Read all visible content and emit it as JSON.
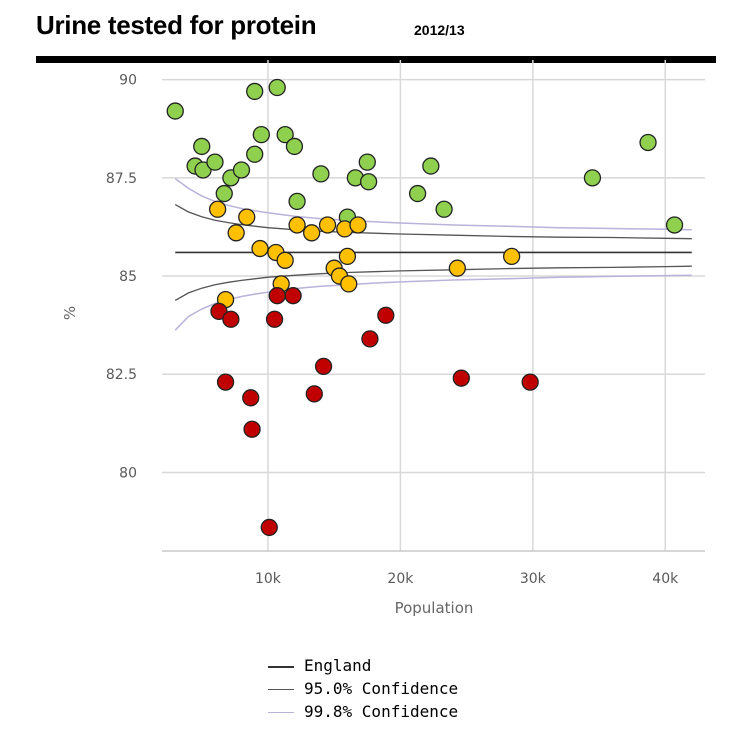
{
  "header": {
    "title": "Urine tested for protein",
    "subtitle": "2012/13"
  },
  "chart_data": {
    "type": "scatter",
    "title": "Urine tested for protein",
    "subtitle": "2012/13",
    "xlabel": "Population",
    "ylabel": "%",
    "xlim": [
      2000,
      43000
    ],
    "ylim": [
      78.0,
      90.5
    ],
    "x_ticks": [
      10000,
      20000,
      30000,
      40000
    ],
    "x_tick_labels": [
      "10k",
      "20k",
      "30k",
      "40k"
    ],
    "y_ticks": [
      80,
      82.5,
      85,
      87.5,
      90
    ],
    "y_tick_labels": [
      "80",
      "82.5",
      "85",
      "87.5",
      "90"
    ],
    "grid": true,
    "colors": {
      "green": "#8fd14f",
      "amber": "#ffc000",
      "red": "#c00000",
      "england": "#333333",
      "ci95": "#555555",
      "ci998": "#b9b2da"
    },
    "england_value": 85.6,
    "confidence_x": [
      3000,
      4000,
      5000,
      6000,
      7000,
      8000,
      9000,
      10000,
      12000,
      14000,
      16000,
      18000,
      20000,
      24000,
      28000,
      32000,
      36000,
      40000,
      42000
    ],
    "ci95_upper": [
      86.82,
      86.63,
      86.51,
      86.42,
      86.36,
      86.31,
      86.27,
      86.23,
      86.18,
      86.14,
      86.11,
      86.09,
      86.07,
      86.04,
      86.01,
      85.99,
      85.98,
      85.96,
      85.95
    ],
    "ci95_lower": [
      84.38,
      84.57,
      84.69,
      84.78,
      84.84,
      84.89,
      84.93,
      84.97,
      85.02,
      85.06,
      85.09,
      85.11,
      85.13,
      85.16,
      85.19,
      85.21,
      85.22,
      85.24,
      85.25
    ],
    "ci998_upper": [
      87.48,
      87.23,
      87.04,
      86.9,
      86.8,
      86.72,
      86.66,
      86.61,
      86.52,
      86.46,
      86.42,
      86.38,
      86.35,
      86.3,
      86.27,
      86.23,
      86.21,
      86.19,
      86.18
    ],
    "ci998_lower": [
      83.62,
      83.97,
      84.16,
      84.3,
      84.4,
      84.48,
      84.54,
      84.59,
      84.68,
      84.74,
      84.78,
      84.82,
      84.85,
      84.9,
      84.93,
      84.97,
      84.99,
      85.01,
      85.02
    ],
    "series": [
      {
        "category": "green",
        "points": [
          [
            3000,
            89.2
          ],
          [
            4500,
            87.8
          ],
          [
            5000,
            88.3
          ],
          [
            5100,
            87.7
          ],
          [
            6000,
            87.9
          ],
          [
            6700,
            87.1
          ],
          [
            7200,
            87.5
          ],
          [
            8000,
            87.7
          ],
          [
            9000,
            88.1
          ],
          [
            9000,
            89.7
          ],
          [
            9500,
            88.6
          ],
          [
            10700,
            89.8
          ],
          [
            11300,
            88.6
          ],
          [
            12000,
            88.3
          ],
          [
            12200,
            86.9
          ],
          [
            14000,
            87.6
          ],
          [
            16000,
            86.5
          ],
          [
            16600,
            87.5
          ],
          [
            17500,
            87.9
          ],
          [
            17600,
            87.4
          ],
          [
            21300,
            87.1
          ],
          [
            22300,
            87.8
          ],
          [
            23300,
            86.7
          ],
          [
            34500,
            87.5
          ],
          [
            38700,
            88.4
          ],
          [
            40700,
            86.3
          ]
        ]
      },
      {
        "category": "amber",
        "points": [
          [
            6200,
            86.7
          ],
          [
            6800,
            84.4
          ],
          [
            7600,
            86.1
          ],
          [
            8400,
            86.5
          ],
          [
            9400,
            85.7
          ],
          [
            10600,
            85.6
          ],
          [
            11000,
            84.8
          ],
          [
            11300,
            85.4
          ],
          [
            12200,
            86.3
          ],
          [
            13300,
            86.1
          ],
          [
            14500,
            86.3
          ],
          [
            15000,
            85.2
          ],
          [
            15400,
            85.0
          ],
          [
            15800,
            86.2
          ],
          [
            16000,
            85.5
          ],
          [
            16100,
            84.8
          ],
          [
            16800,
            86.3
          ],
          [
            24300,
            85.2
          ],
          [
            28400,
            85.5
          ]
        ]
      },
      {
        "category": "red",
        "points": [
          [
            6300,
            84.1
          ],
          [
            6800,
            82.3
          ],
          [
            7200,
            83.9
          ],
          [
            8700,
            81.9
          ],
          [
            8800,
            81.1
          ],
          [
            10100,
            78.6
          ],
          [
            10500,
            83.9
          ],
          [
            10700,
            84.5
          ],
          [
            11900,
            84.5
          ],
          [
            13500,
            82.0
          ],
          [
            14200,
            82.7
          ],
          [
            17700,
            83.4
          ],
          [
            18900,
            84.0
          ],
          [
            24600,
            82.4
          ],
          [
            29800,
            82.3
          ]
        ]
      }
    ],
    "legend": [
      {
        "label": "England",
        "color": "#333333"
      },
      {
        "label": "95.0% Confidence",
        "color": "#555555"
      },
      {
        "label": "99.8% Confidence",
        "color": "#b9b2da"
      }
    ],
    "legend_position": "bottom"
  }
}
